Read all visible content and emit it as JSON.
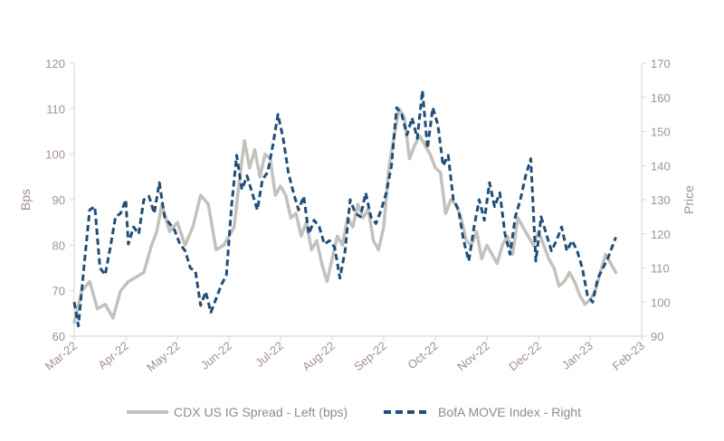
{
  "chart_data": {
    "type": "line",
    "xlabel": "",
    "y_left_label": "Bps",
    "y_right_label": "Price",
    "y_left_lim": [
      60,
      120
    ],
    "y_right_lim": [
      90,
      170
    ],
    "y_left_ticks": [
      "60",
      "70",
      "80",
      "90",
      "100",
      "110",
      "120"
    ],
    "y_right_ticks": [
      "90",
      "100",
      "110",
      "120",
      "130",
      "140",
      "150",
      "160",
      "170"
    ],
    "x_ticks": [
      "Mar-22",
      "Apr-22",
      "May-22",
      "Jun-22",
      "Jul-22",
      "Aug-22",
      "Sep-22",
      "Oct-22",
      "Nov-22",
      "Dec-22",
      "Jan-23",
      "Feb-23"
    ],
    "grid": false,
    "legend_position": "bottom",
    "series": [
      {
        "name": "CDX US IG Spread - Left (bps)",
        "axis": "left",
        "color": "#c4c1bc",
        "style": "solid",
        "points": [
          [
            0.0,
            63
          ],
          [
            0.15,
            70
          ],
          [
            0.3,
            72
          ],
          [
            0.45,
            66
          ],
          [
            0.6,
            67
          ],
          [
            0.75,
            64
          ],
          [
            0.9,
            70
          ],
          [
            1.05,
            72
          ],
          [
            1.2,
            73
          ],
          [
            1.35,
            74
          ],
          [
            1.5,
            80
          ],
          [
            1.6,
            83
          ],
          [
            1.7,
            89
          ],
          [
            1.85,
            83
          ],
          [
            2.0,
            85
          ],
          [
            2.15,
            80
          ],
          [
            2.3,
            84
          ],
          [
            2.45,
            91
          ],
          [
            2.6,
            89
          ],
          [
            2.75,
            79
          ],
          [
            2.9,
            80
          ],
          [
            3.0,
            82
          ],
          [
            3.1,
            84
          ],
          [
            3.2,
            94
          ],
          [
            3.3,
            103
          ],
          [
            3.4,
            97
          ],
          [
            3.5,
            101
          ],
          [
            3.6,
            95
          ],
          [
            3.7,
            100
          ],
          [
            3.8,
            99
          ],
          [
            3.9,
            91
          ],
          [
            4.0,
            93
          ],
          [
            4.1,
            91
          ],
          [
            4.2,
            86
          ],
          [
            4.3,
            87
          ],
          [
            4.4,
            82
          ],
          [
            4.5,
            85
          ],
          [
            4.6,
            79
          ],
          [
            4.7,
            81
          ],
          [
            4.8,
            76
          ],
          [
            4.9,
            72
          ],
          [
            5.0,
            77
          ],
          [
            5.1,
            82
          ],
          [
            5.2,
            80
          ],
          [
            5.3,
            86
          ],
          [
            5.4,
            84
          ],
          [
            5.5,
            89
          ],
          [
            5.6,
            86
          ],
          [
            5.7,
            88
          ],
          [
            5.8,
            81
          ],
          [
            5.9,
            79
          ],
          [
            6.0,
            84
          ],
          [
            6.1,
            97
          ],
          [
            6.2,
            104
          ],
          [
            6.3,
            110
          ],
          [
            6.4,
            108
          ],
          [
            6.5,
            99
          ],
          [
            6.6,
            102
          ],
          [
            6.7,
            104
          ],
          [
            6.8,
            102
          ],
          [
            6.9,
            100
          ],
          [
            7.0,
            97
          ],
          [
            7.1,
            96
          ],
          [
            7.2,
            87
          ],
          [
            7.3,
            90
          ],
          [
            7.4,
            89
          ],
          [
            7.5,
            86
          ],
          [
            7.6,
            81
          ],
          [
            7.7,
            80
          ],
          [
            7.8,
            83
          ],
          [
            7.9,
            77
          ],
          [
            8.0,
            80
          ],
          [
            8.1,
            78
          ],
          [
            8.2,
            76
          ],
          [
            8.3,
            80
          ],
          [
            8.4,
            82
          ],
          [
            8.5,
            78
          ],
          [
            8.6,
            86
          ],
          [
            8.7,
            84
          ],
          [
            8.8,
            82
          ],
          [
            8.9,
            80
          ],
          [
            9.0,
            83
          ],
          [
            9.1,
            80
          ],
          [
            9.2,
            77
          ],
          [
            9.3,
            75
          ],
          [
            9.4,
            71
          ],
          [
            9.5,
            72
          ],
          [
            9.6,
            74
          ],
          [
            9.7,
            72
          ],
          [
            9.8,
            69
          ],
          [
            9.9,
            67
          ],
          [
            10.0,
            68
          ],
          [
            10.1,
            70
          ],
          [
            10.2,
            74
          ],
          [
            10.3,
            78
          ],
          [
            10.4,
            76
          ],
          [
            10.5,
            74
          ]
        ]
      },
      {
        "name": "BofA MOVE Index - Right",
        "axis": "right",
        "color": "#1f4e79",
        "style": "dashed",
        "points": [
          [
            0.0,
            100
          ],
          [
            0.08,
            93
          ],
          [
            0.2,
            112
          ],
          [
            0.3,
            127
          ],
          [
            0.4,
            128
          ],
          [
            0.5,
            110
          ],
          [
            0.6,
            108
          ],
          [
            0.7,
            116
          ],
          [
            0.8,
            125
          ],
          [
            0.9,
            126
          ],
          [
            1.0,
            130
          ],
          [
            1.05,
            117
          ],
          [
            1.15,
            122
          ],
          [
            1.25,
            120
          ],
          [
            1.35,
            130
          ],
          [
            1.45,
            131
          ],
          [
            1.55,
            126
          ],
          [
            1.65,
            135
          ],
          [
            1.75,
            125
          ],
          [
            1.85,
            123
          ],
          [
            1.95,
            121
          ],
          [
            2.05,
            117
          ],
          [
            2.15,
            115
          ],
          [
            2.25,
            110
          ],
          [
            2.35,
            109
          ],
          [
            2.45,
            99
          ],
          [
            2.55,
            103
          ],
          [
            2.65,
            97
          ],
          [
            2.75,
            101
          ],
          [
            2.85,
            105
          ],
          [
            2.95,
            108
          ],
          [
            3.05,
            128
          ],
          [
            3.15,
            143
          ],
          [
            3.25,
            133
          ],
          [
            3.35,
            137
          ],
          [
            3.45,
            132
          ],
          [
            3.55,
            127
          ],
          [
            3.65,
            136
          ],
          [
            3.75,
            138
          ],
          [
            3.85,
            146
          ],
          [
            3.95,
            155
          ],
          [
            4.05,
            148
          ],
          [
            4.15,
            138
          ],
          [
            4.25,
            132
          ],
          [
            4.35,
            127
          ],
          [
            4.45,
            131
          ],
          [
            4.55,
            120
          ],
          [
            4.65,
            124
          ],
          [
            4.75,
            122
          ],
          [
            4.85,
            117
          ],
          [
            4.95,
            118
          ],
          [
            5.05,
            116
          ],
          [
            5.15,
            107
          ],
          [
            5.25,
            115
          ],
          [
            5.35,
            130
          ],
          [
            5.45,
            126
          ],
          [
            5.55,
            125
          ],
          [
            5.65,
            132
          ],
          [
            5.75,
            125
          ],
          [
            5.85,
            123
          ],
          [
            5.95,
            127
          ],
          [
            6.05,
            132
          ],
          [
            6.15,
            140
          ],
          [
            6.25,
            157
          ],
          [
            6.35,
            155
          ],
          [
            6.45,
            149
          ],
          [
            6.55,
            154
          ],
          [
            6.65,
            148
          ],
          [
            6.75,
            162
          ],
          [
            6.85,
            145
          ],
          [
            6.95,
            157
          ],
          [
            7.05,
            152
          ],
          [
            7.15,
            140
          ],
          [
            7.25,
            143
          ],
          [
            7.35,
            130
          ],
          [
            7.45,
            127
          ],
          [
            7.55,
            118
          ],
          [
            7.65,
            112
          ],
          [
            7.75,
            122
          ],
          [
            7.85,
            130
          ],
          [
            7.95,
            124
          ],
          [
            8.05,
            135
          ],
          [
            8.15,
            128
          ],
          [
            8.25,
            132
          ],
          [
            8.35,
            120
          ],
          [
            8.45,
            114
          ],
          [
            8.55,
            125
          ],
          [
            8.65,
            130
          ],
          [
            8.75,
            137
          ],
          [
            8.85,
            142
          ],
          [
            8.95,
            112
          ],
          [
            9.05,
            125
          ],
          [
            9.15,
            120
          ],
          [
            9.25,
            115
          ],
          [
            9.35,
            118
          ],
          [
            9.45,
            122
          ],
          [
            9.55,
            115
          ],
          [
            9.65,
            118
          ],
          [
            9.75,
            115
          ],
          [
            9.85,
            110
          ],
          [
            9.95,
            102
          ],
          [
            10.05,
            100
          ],
          [
            10.15,
            107
          ],
          [
            10.25,
            110
          ],
          [
            10.35,
            113
          ],
          [
            10.45,
            117
          ],
          [
            10.5,
            119
          ]
        ]
      }
    ]
  }
}
